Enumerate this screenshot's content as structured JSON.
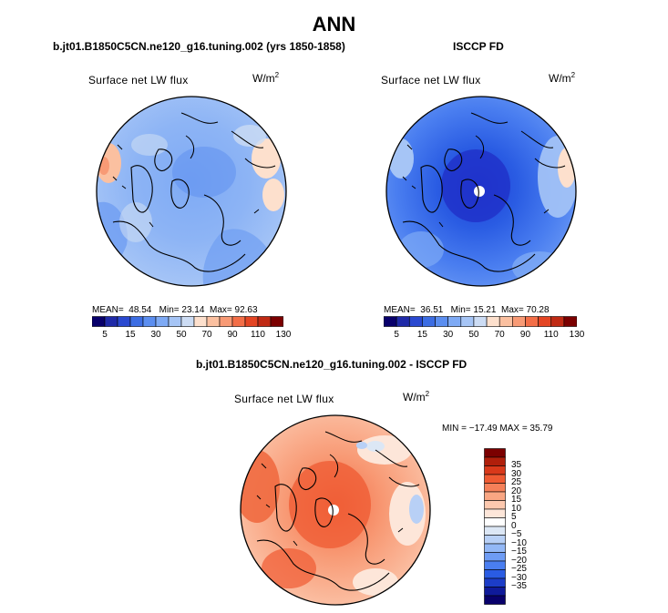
{
  "title": "ANN",
  "colors": {
    "abs_scale": [
      "#08006b",
      "#1f2aa8",
      "#2a49d0",
      "#3c6de3",
      "#5b8ef0",
      "#7eaaf5",
      "#a6c5f6",
      "#ccdcf4",
      "#fde0cd",
      "#fbc0a0",
      "#f89a75",
      "#f36e47",
      "#e44523",
      "#c02a14",
      "#7b0000"
    ],
    "diff_scale": [
      "#08006b",
      "#0f1a9a",
      "#1c3dc8",
      "#2a5ce3",
      "#4a7ef0",
      "#6e9cf4",
      "#93b8f6",
      "#b8d0f6",
      "#dce7f5",
      "#ffffff",
      "#fde6d9",
      "#fcc8ae",
      "#f9a683",
      "#f58059",
      "#ef5a32",
      "#d9391a",
      "#b01f0b",
      "#7b0000"
    ]
  },
  "panels": [
    {
      "title": "b.jt01.B1850C5CN.ne120_g16.tuning.002 (yrs 1850-1858)",
      "map_label": "Surface net LW flux",
      "units_base": "W/m",
      "units_exp": "2",
      "stats": {
        "mean_label": "MEAN=",
        "mean": "48.54",
        "min_label": "Min=",
        "min": "23.14",
        "max_label": "Max=",
        "max": "92.63"
      },
      "colorbar_ticks": [
        "5",
        "15",
        "30",
        "50",
        "70",
        "90",
        "110",
        "130"
      ]
    },
    {
      "title": "ISCCP FD",
      "map_label": "Surface net LW flux",
      "units_base": "W/m",
      "units_exp": "2",
      "stats": {
        "mean_label": "MEAN=",
        "mean": "36.51",
        "min_label": "Min=",
        "min": "15.21",
        "max_label": "Max=",
        "max": "70.28"
      },
      "colorbar_ticks": [
        "5",
        "15",
        "30",
        "50",
        "70",
        "90",
        "110",
        "130"
      ]
    },
    {
      "title": "b.jt01.B1850C5CN.ne120_g16.tuning.002 - ISCCP FD",
      "map_label": "Surface net LW flux",
      "units_base": "W/m",
      "units_exp": "2",
      "stats_line": "MIN = −17.49  MAX =  35.79",
      "colorbar_ticks": [
        "35",
        "30",
        "25",
        "20",
        "15",
        "10",
        "5",
        "0",
        "−5",
        "−10",
        "−15",
        "−20",
        "−25",
        "−30",
        "−35"
      ]
    }
  ]
}
